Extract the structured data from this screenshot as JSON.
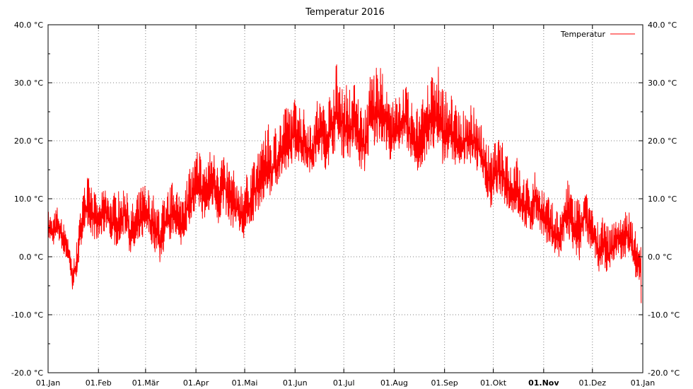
{
  "chart_data": {
    "type": "line",
    "title": "Temperatur 2016",
    "xlabel": "",
    "ylabel": "",
    "grid": true,
    "legend_position": "top-right",
    "y_axis": {
      "min": -20,
      "max": 40,
      "ticks": [
        -20,
        -10,
        0,
        10,
        20,
        30,
        40
      ],
      "tick_labels": [
        "-20.0 °C",
        "-10.0 °C",
        "0.0 °C",
        "10.0 °C",
        "20.0 °C",
        "30.0 °C",
        "40.0 °C"
      ],
      "minor_step": 5
    },
    "x_axis": {
      "range": [
        "2016-01-01",
        "2017-01-01"
      ],
      "ticks": [
        "2016-01-01",
        "2016-02-01",
        "2016-03-01",
        "2016-04-01",
        "2016-05-01",
        "2016-06-01",
        "2016-07-01",
        "2016-08-01",
        "2016-09-01",
        "2016-10-01",
        "2016-11-01",
        "2016-12-01",
        "2017-01-01"
      ],
      "tick_labels": [
        "01.Jan",
        "01.Feb",
        "01.Mär",
        "01.Apr",
        "01.Mai",
        "01.Jun",
        "01.Jul",
        "01.Aug",
        "01.Sep",
        "01.Okt",
        "01.Nov",
        "01.Dez",
        "01.Jan"
      ],
      "bold_tick_index": 10
    },
    "series": [
      {
        "name": "Temperatur",
        "color": "#ff0000",
        "x": [
          "2016-01-01",
          "2016-01-04",
          "2016-01-07",
          "2016-01-10",
          "2016-01-13",
          "2016-01-16",
          "2016-01-19",
          "2016-01-22",
          "2016-01-25",
          "2016-01-28",
          "2016-01-31",
          "2016-02-03",
          "2016-02-06",
          "2016-02-09",
          "2016-02-12",
          "2016-02-15",
          "2016-02-18",
          "2016-02-21",
          "2016-02-24",
          "2016-02-27",
          "2016-03-01",
          "2016-03-04",
          "2016-03-07",
          "2016-03-10",
          "2016-03-13",
          "2016-03-16",
          "2016-03-19",
          "2016-03-22",
          "2016-03-25",
          "2016-03-28",
          "2016-03-31",
          "2016-04-03",
          "2016-04-06",
          "2016-04-09",
          "2016-04-12",
          "2016-04-15",
          "2016-04-18",
          "2016-04-21",
          "2016-04-24",
          "2016-04-27",
          "2016-04-30",
          "2016-05-03",
          "2016-05-06",
          "2016-05-09",
          "2016-05-12",
          "2016-05-15",
          "2016-05-18",
          "2016-05-21",
          "2016-05-24",
          "2016-05-27",
          "2016-05-30",
          "2016-06-02",
          "2016-06-05",
          "2016-06-08",
          "2016-06-11",
          "2016-06-14",
          "2016-06-17",
          "2016-06-20",
          "2016-06-23",
          "2016-06-26",
          "2016-06-29",
          "2016-07-02",
          "2016-07-05",
          "2016-07-08",
          "2016-07-11",
          "2016-07-14",
          "2016-07-17",
          "2016-07-20",
          "2016-07-23",
          "2016-07-26",
          "2016-07-29",
          "2016-08-01",
          "2016-08-04",
          "2016-08-07",
          "2016-08-10",
          "2016-08-13",
          "2016-08-16",
          "2016-08-19",
          "2016-08-22",
          "2016-08-25",
          "2016-08-28",
          "2016-08-31",
          "2016-09-03",
          "2016-09-06",
          "2016-09-09",
          "2016-09-12",
          "2016-09-15",
          "2016-09-18",
          "2016-09-21",
          "2016-09-24",
          "2016-09-27",
          "2016-09-30",
          "2016-10-03",
          "2016-10-06",
          "2016-10-09",
          "2016-10-12",
          "2016-10-15",
          "2016-10-18",
          "2016-10-21",
          "2016-10-24",
          "2016-10-27",
          "2016-10-30",
          "2016-11-02",
          "2016-11-05",
          "2016-11-08",
          "2016-11-11",
          "2016-11-14",
          "2016-11-17",
          "2016-11-20",
          "2016-11-23",
          "2016-11-26",
          "2016-11-29",
          "2016-12-02",
          "2016-12-05",
          "2016-12-08",
          "2016-12-11",
          "2016-12-14",
          "2016-12-17",
          "2016-12-20",
          "2016-12-23",
          "2016-12-26",
          "2016-12-29",
          "2016-12-31"
        ],
        "min": [
          2,
          1,
          2,
          0,
          -2,
          -7,
          -4,
          2,
          4,
          2,
          1,
          2,
          3,
          1,
          0,
          1,
          2,
          -2,
          -1,
          1,
          2,
          1,
          -1,
          -3,
          0,
          1,
          3,
          -1,
          2,
          4,
          5,
          6,
          4,
          5,
          7,
          3,
          6,
          4,
          3,
          2,
          1,
          2,
          4,
          6,
          7,
          9,
          8,
          10,
          11,
          12,
          14,
          15,
          14,
          13,
          12,
          14,
          15,
          13,
          14,
          16,
          15,
          14,
          15,
          17,
          13,
          12,
          16,
          15,
          18,
          17,
          15,
          14,
          16,
          18,
          15,
          13,
          12,
          14,
          16,
          15,
          14,
          13,
          15,
          14,
          13,
          12,
          15,
          14,
          13,
          12,
          8,
          6,
          9,
          8,
          7,
          5,
          6,
          4,
          3,
          2,
          5,
          3,
          1,
          0,
          -1,
          -2,
          1,
          0,
          -2,
          -3,
          2,
          0,
          -1,
          -4,
          -3,
          -5,
          -2,
          -1,
          -3,
          0,
          -4,
          -6,
          -8
        ],
        "max": [
          8,
          7,
          9,
          6,
          5,
          -1,
          3,
          11,
          14,
          13,
          10,
          11,
          13,
          10,
          12,
          11,
          14,
          9,
          10,
          12,
          13,
          12,
          10,
          9,
          11,
          12,
          14,
          10,
          13,
          15,
          17,
          19,
          16,
          18,
          20,
          17,
          19,
          16,
          15,
          14,
          13,
          15,
          17,
          19,
          20,
          23,
          22,
          24,
          25,
          26,
          27,
          28,
          26,
          25,
          24,
          27,
          28,
          26,
          30,
          34,
          32,
          31,
          29,
          30,
          27,
          26,
          32,
          34,
          33,
          31,
          28,
          27,
          29,
          31,
          28,
          27,
          26,
          28,
          30,
          32,
          33,
          30,
          29,
          28,
          26,
          25,
          27,
          26,
          25,
          24,
          20,
          18,
          21,
          20,
          19,
          17,
          18,
          15,
          14,
          13,
          15,
          13,
          11,
          10,
          9,
          8,
          12,
          14,
          11,
          10,
          13,
          9,
          8,
          6,
          7,
          5,
          6,
          8,
          7,
          9,
          6,
          5,
          3
        ]
      }
    ]
  }
}
